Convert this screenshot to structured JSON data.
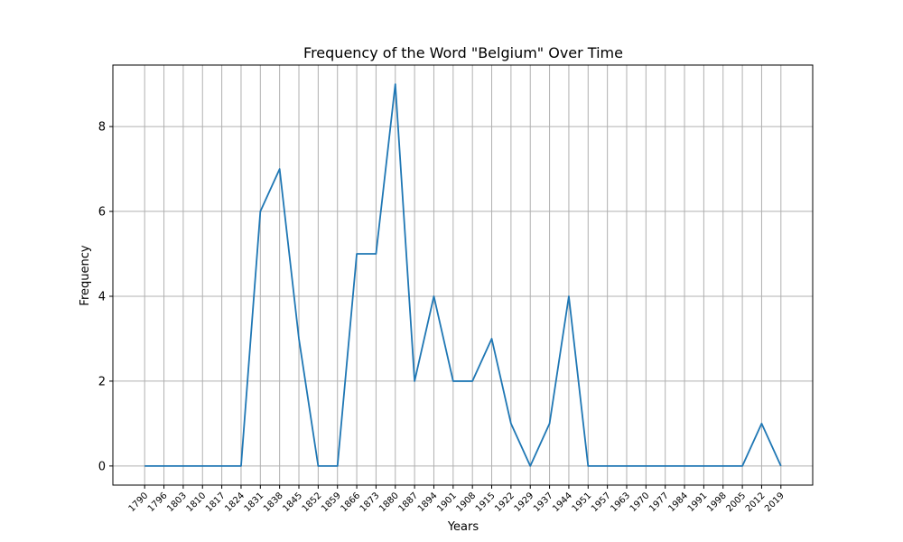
{
  "chart_data": {
    "type": "line",
    "title": "Frequency of the Word \"Belgium\" Over Time",
    "xlabel": "Years",
    "ylabel": "Frequency",
    "grid": true,
    "x": [
      "1790",
      "1796",
      "1803",
      "1810",
      "1817",
      "1824",
      "1831",
      "1838",
      "1845",
      "1852",
      "1859",
      "1866",
      "1873",
      "1880",
      "1887",
      "1894",
      "1901",
      "1908",
      "1915",
      "1922",
      "1929",
      "1937",
      "1944",
      "1951",
      "1957",
      "1963",
      "1970",
      "1977",
      "1984",
      "1991",
      "1998",
      "2005",
      "2012",
      "2019"
    ],
    "series": [
      {
        "values": [
          0,
          0,
          0,
          0,
          0,
          0,
          6,
          7,
          3,
          0,
          0,
          5,
          5,
          9,
          2,
          4,
          2,
          2,
          3,
          1,
          0,
          1,
          4,
          0,
          0,
          0,
          0,
          0,
          0,
          0,
          0,
          0,
          1,
          0
        ]
      }
    ],
    "ylim": [
      -0.45,
      9.45
    ],
    "yticks": [
      0,
      2,
      4,
      6,
      8
    ],
    "line_color": "#1f77b4"
  }
}
